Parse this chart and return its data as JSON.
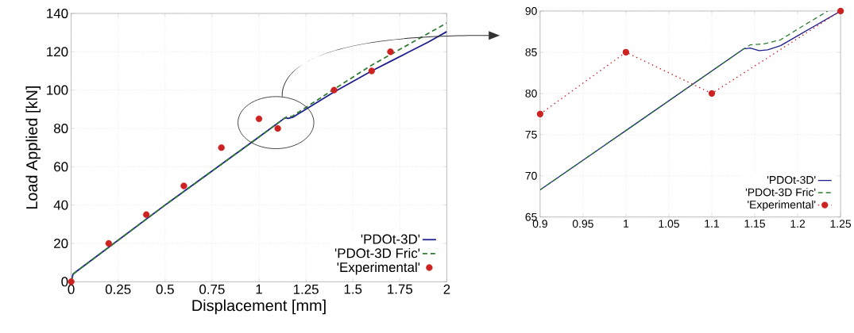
{
  "chart_data": [
    {
      "type": "line",
      "xlabel": "Displacement [mm]",
      "ylabel": "Load Applied [kN]",
      "xlim": [
        0,
        2
      ],
      "ylim": [
        0,
        140
      ],
      "xticks": [
        0,
        0.25,
        0.5,
        0.75,
        1,
        1.25,
        1.5,
        1.75,
        2
      ],
      "yticks": [
        0,
        20,
        40,
        60,
        80,
        100,
        120,
        140
      ],
      "grid": true,
      "legend": "bottom right",
      "series": [
        {
          "name": "'PDOt-3D'",
          "color": "#1f1f8f",
          "line_style": "solid",
          "marker": "none",
          "x": [
            0,
            0.01,
            0.03,
            0.5,
            1.0,
            1.137,
            1.145,
            1.155,
            1.18,
            1.2,
            1.25,
            1.4,
            1.6,
            1.7,
            1.8,
            1.9,
            2.0
          ],
          "values": [
            0,
            4,
            5.5,
            40,
            75.5,
            85.4,
            85.5,
            85.2,
            85.8,
            87,
            90,
            99,
            110,
            115,
            120,
            125,
            130.5
          ]
        },
        {
          "name": "'PDOt-3D Fric'",
          "color": "#2e7d32",
          "line_style": "dashed",
          "marker": "none",
          "x": [
            0,
            0.01,
            0.03,
            0.5,
            1.0,
            1.137,
            1.145,
            1.16,
            1.18,
            1.2,
            1.235,
            1.4,
            1.6,
            1.8,
            2.0
          ],
          "values": [
            0,
            4,
            5.5,
            40,
            75.5,
            85.4,
            85.9,
            86,
            86.5,
            87.8,
            90,
            100.5,
            113,
            124,
            135
          ]
        },
        {
          "name": "'Experimental'",
          "type": "scatter",
          "color": "#cc2222",
          "marker": "circle",
          "x": [
            0,
            0.2,
            0.4,
            0.6,
            0.8,
            1.0,
            1.1,
            1.4,
            1.6,
            1.7
          ],
          "values": [
            0,
            20,
            35,
            50,
            70,
            85,
            80,
            100,
            110,
            120
          ]
        }
      ]
    },
    {
      "type": "line",
      "xlim": [
        0.9,
        1.25
      ],
      "ylim": [
        65,
        90
      ],
      "xticks": [
        0.9,
        0.95,
        1,
        1.05,
        1.1,
        1.15,
        1.2,
        1.25
      ],
      "yticks": [
        65,
        70,
        75,
        80,
        85,
        90
      ],
      "grid": true,
      "legend": "bottom right",
      "series": [
        {
          "name": "'PDOt-3D'",
          "color": "#1f1f8f",
          "line_style": "solid",
          "marker": "none",
          "x": [
            0.9,
            1.0,
            1.137,
            1.145,
            1.155,
            1.165,
            1.18,
            1.2,
            1.25
          ],
          "values": [
            68.3,
            75.5,
            85.4,
            85.5,
            85.2,
            85.3,
            85.8,
            87,
            90
          ]
        },
        {
          "name": "'PDOt-3D Fric'",
          "color": "#2e7d32",
          "line_style": "dashed",
          "marker": "none",
          "x": [
            0.9,
            1.0,
            1.137,
            1.145,
            1.16,
            1.18,
            1.2,
            1.235
          ],
          "values": [
            68.3,
            75.5,
            85.4,
            85.9,
            86,
            86.5,
            87.8,
            90
          ]
        },
        {
          "name": "'Experimental'",
          "color": "#cc2222",
          "line_style": "dotted",
          "marker": "circle",
          "x": [
            0.9,
            1.0,
            1.1,
            1.25
          ],
          "values": [
            77.5,
            85,
            80,
            90
          ]
        }
      ]
    }
  ]
}
